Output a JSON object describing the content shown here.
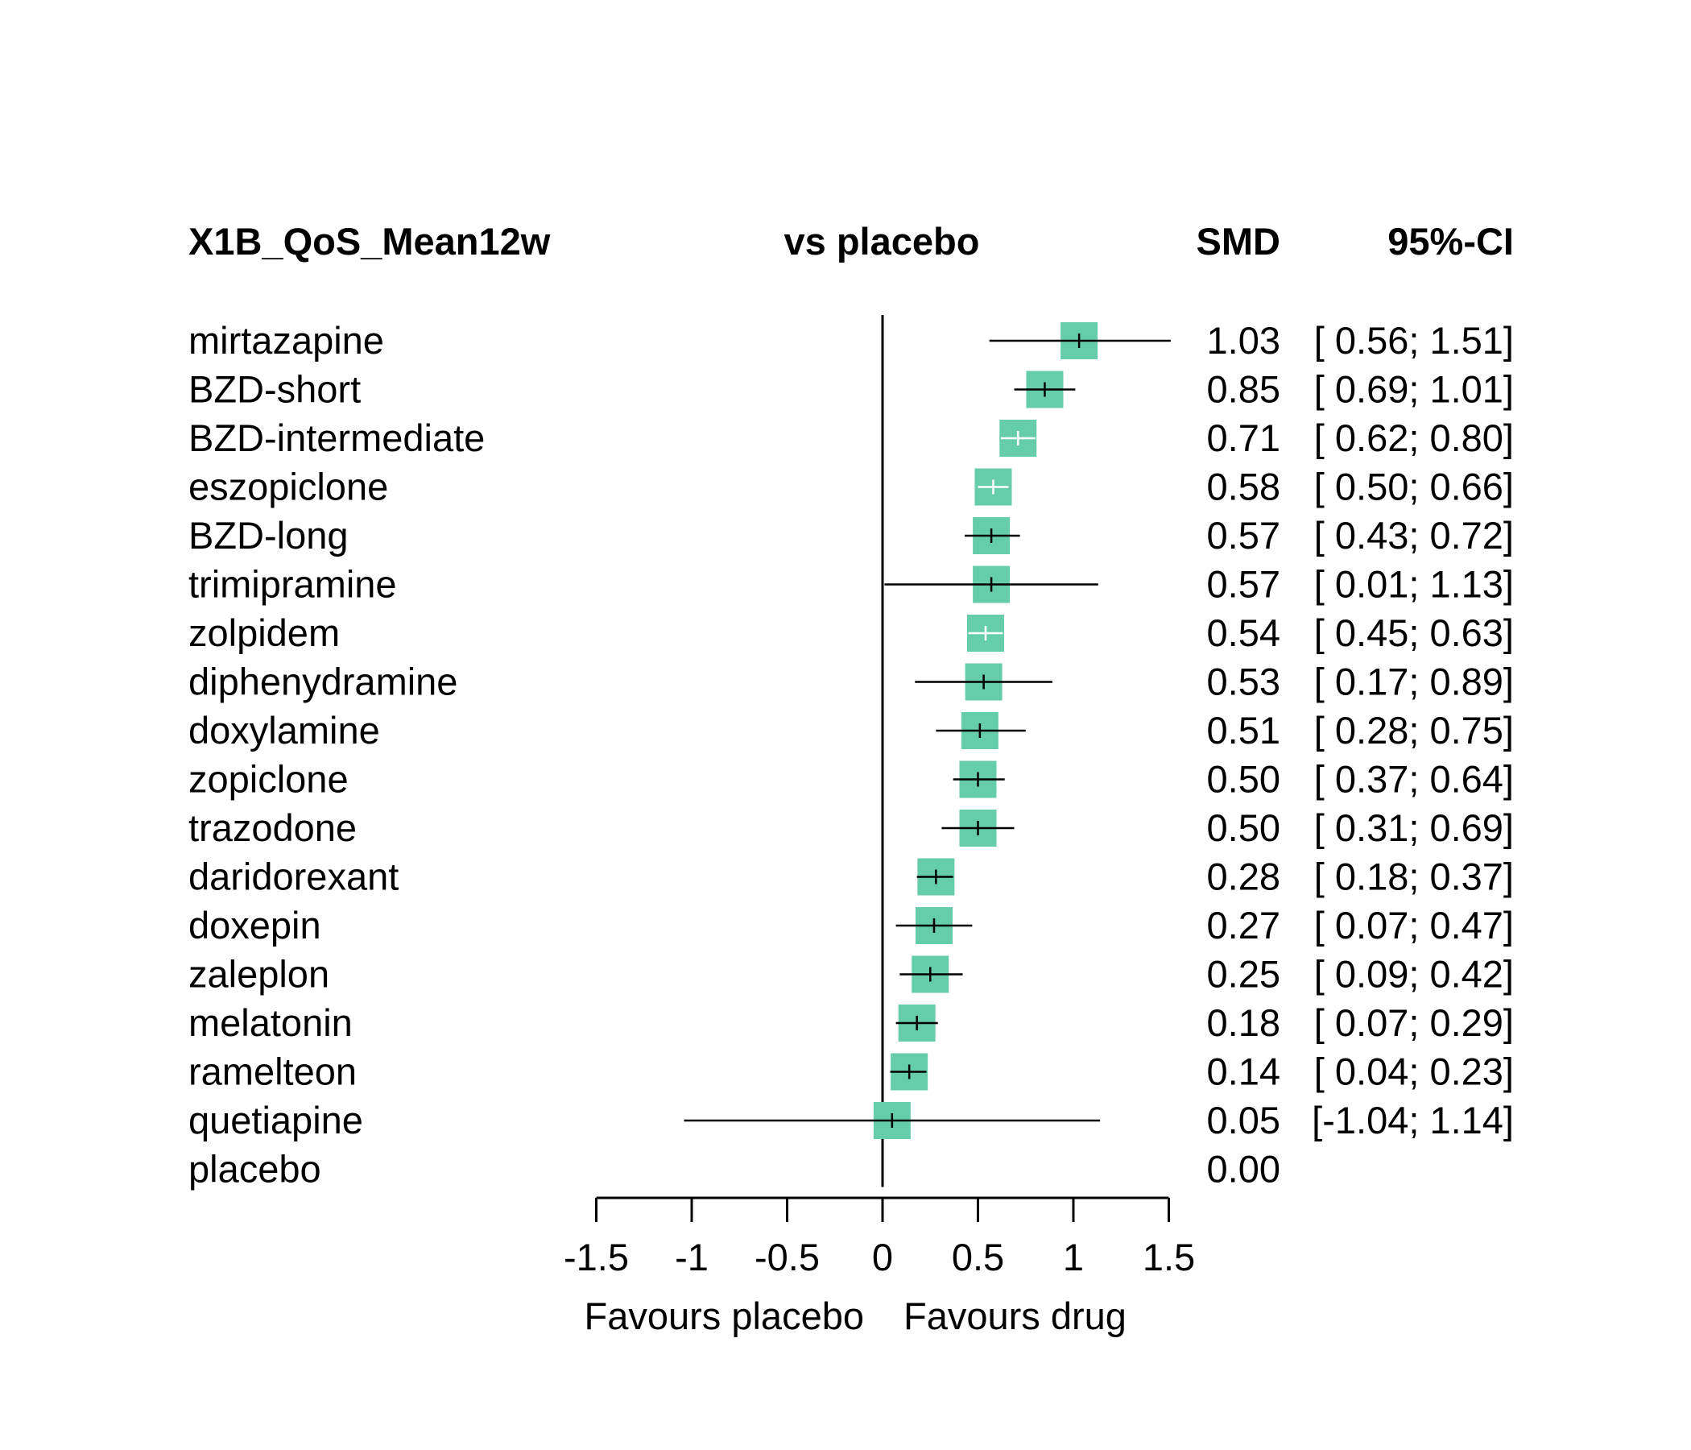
{
  "chart_data": {
    "type": "forest",
    "headers": {
      "outcome": "X1B_QoS_Mean12w",
      "comparison": "vs placebo",
      "effect": "SMD",
      "ci": "95%-CI"
    },
    "rows": [
      {
        "label": "mirtazapine",
        "smd": 1.03,
        "lower": 0.56,
        "upper": 1.51,
        "smd_text": "1.03",
        "ci_text": "[ 0.56; 1.51]"
      },
      {
        "label": "BZD-short",
        "smd": 0.85,
        "lower": 0.69,
        "upper": 1.01,
        "smd_text": "0.85",
        "ci_text": "[ 0.69; 1.01]"
      },
      {
        "label": "BZD-intermediate",
        "smd": 0.71,
        "lower": 0.62,
        "upper": 0.8,
        "smd_text": "0.71",
        "ci_text": "[ 0.62; 0.80]"
      },
      {
        "label": "eszopiclone",
        "smd": 0.58,
        "lower": 0.5,
        "upper": 0.66,
        "smd_text": "0.58",
        "ci_text": "[ 0.50; 0.66]"
      },
      {
        "label": "BZD-long",
        "smd": 0.57,
        "lower": 0.43,
        "upper": 0.72,
        "smd_text": "0.57",
        "ci_text": "[ 0.43; 0.72]"
      },
      {
        "label": "trimipramine",
        "smd": 0.57,
        "lower": 0.01,
        "upper": 1.13,
        "smd_text": "0.57",
        "ci_text": "[ 0.01; 1.13]"
      },
      {
        "label": "zolpidem",
        "smd": 0.54,
        "lower": 0.45,
        "upper": 0.63,
        "smd_text": "0.54",
        "ci_text": "[ 0.45; 0.63]"
      },
      {
        "label": "diphenydramine",
        "smd": 0.53,
        "lower": 0.17,
        "upper": 0.89,
        "smd_text": "0.53",
        "ci_text": "[ 0.17; 0.89]"
      },
      {
        "label": "doxylamine",
        "smd": 0.51,
        "lower": 0.28,
        "upper": 0.75,
        "smd_text": "0.51",
        "ci_text": "[ 0.28; 0.75]"
      },
      {
        "label": "zopiclone",
        "smd": 0.5,
        "lower": 0.37,
        "upper": 0.64,
        "smd_text": "0.50",
        "ci_text": "[ 0.37; 0.64]"
      },
      {
        "label": "trazodone",
        "smd": 0.5,
        "lower": 0.31,
        "upper": 0.69,
        "smd_text": "0.50",
        "ci_text": "[ 0.31; 0.69]"
      },
      {
        "label": "daridorexant",
        "smd": 0.28,
        "lower": 0.18,
        "upper": 0.37,
        "smd_text": "0.28",
        "ci_text": "[ 0.18; 0.37]"
      },
      {
        "label": "doxepin",
        "smd": 0.27,
        "lower": 0.07,
        "upper": 0.47,
        "smd_text": "0.27",
        "ci_text": "[ 0.07; 0.47]"
      },
      {
        "label": "zaleplon",
        "smd": 0.25,
        "lower": 0.09,
        "upper": 0.42,
        "smd_text": "0.25",
        "ci_text": "[ 0.09; 0.42]"
      },
      {
        "label": "melatonin",
        "smd": 0.18,
        "lower": 0.07,
        "upper": 0.29,
        "smd_text": "0.18",
        "ci_text": "[ 0.07; 0.29]"
      },
      {
        "label": "ramelteon",
        "smd": 0.14,
        "lower": 0.04,
        "upper": 0.23,
        "smd_text": "0.14",
        "ci_text": "[ 0.04; 0.23]"
      },
      {
        "label": "quetiapine",
        "smd": 0.05,
        "lower": -1.04,
        "upper": 1.14,
        "smd_text": "0.05",
        "ci_text": "[-1.04; 1.14]"
      },
      {
        "label": "placebo",
        "smd": 0.0,
        "lower": null,
        "upper": null,
        "smd_text": "0.00",
        "ci_text": ""
      }
    ],
    "xlim": [
      -1.5,
      1.5
    ],
    "x_ticks": [
      -1.5,
      -1,
      -0.5,
      0,
      0.5,
      1,
      1.5
    ],
    "x_tick_labels": [
      "-1.5",
      "-1",
      "-0.5",
      "0",
      "0.5",
      "1",
      "1.5"
    ],
    "favours_left": "Favours placebo",
    "favours_right": "Favours drug",
    "reference_line": 0,
    "box_color": "#66CDAA",
    "line_color": "#000000",
    "light_tick_color": "#ffffff"
  }
}
